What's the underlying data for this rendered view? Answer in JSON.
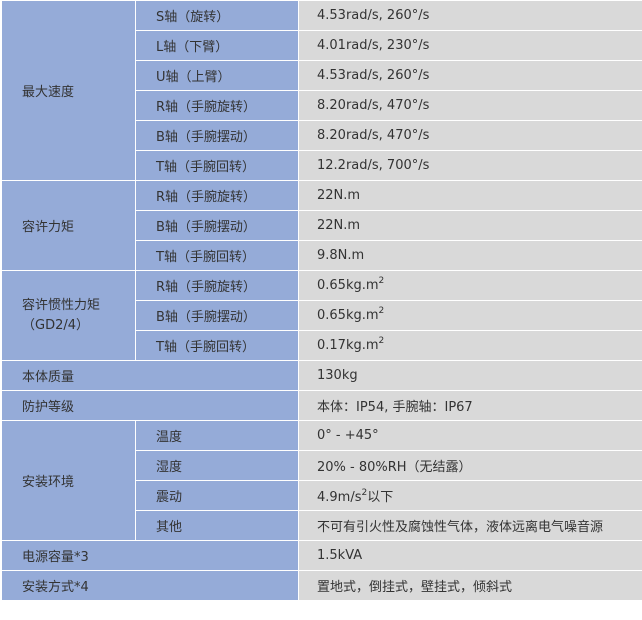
{
  "max_speed": {
    "label": "最大速度",
    "rows": [
      {
        "axis": "S轴（旋转）",
        "value": "4.53rad/s, 260°/s"
      },
      {
        "axis": "L轴（下臂）",
        "value": "4.01rad/s, 230°/s"
      },
      {
        "axis": "U轴（上臂）",
        "value": "4.53rad/s, 260°/s"
      },
      {
        "axis": "R轴（手腕旋转）",
        "value": "8.20rad/s, 470°/s"
      },
      {
        "axis": "B轴（手腕摆动）",
        "value": "8.20rad/s, 470°/s"
      },
      {
        "axis": "T轴（手腕回转）",
        "value": "12.2rad/s, 700°/s"
      }
    ]
  },
  "allowable_torque": {
    "label": "容许力矩",
    "rows": [
      {
        "axis": "R轴（手腕旋转）",
        "value": "22N.m"
      },
      {
        "axis": "B轴（手腕摆动）",
        "value": "22N.m"
      },
      {
        "axis": "T轴（手腕回转）",
        "value": "9.8N.m"
      }
    ]
  },
  "allowable_inertia": {
    "label_line1": "容许惯性力矩",
    "label_line2": "（GD2/4）",
    "rows": [
      {
        "axis": "R轴（手腕旋转）",
        "value": "0.65kg.m",
        "sup": "2"
      },
      {
        "axis": "B轴（手腕摆动）",
        "value": "0.65kg.m",
        "sup": "2"
      },
      {
        "axis": "T轴（手腕回转）",
        "value": "0.17kg.m",
        "sup": "2"
      }
    ]
  },
  "mass": {
    "label": "本体质量",
    "value": "130kg"
  },
  "protection": {
    "label": "防护等级",
    "value": "本体：IP54, 手腕轴：IP67"
  },
  "environment": {
    "label": "安装环境",
    "rows": [
      {
        "item": "温度",
        "value": "0° - +45°"
      },
      {
        "item": "湿度",
        "value": "20% - 80%RH（无结露）"
      },
      {
        "item": "震动",
        "value": "4.9m/s",
        "sup": "2",
        "suffix": "以下"
      },
      {
        "item": "其他",
        "value": "不可有引火性及腐蚀性气体，液体远离电气噪音源"
      }
    ]
  },
  "power": {
    "label": "电源容量*3",
    "value": "1.5kVA"
  },
  "mounting": {
    "label": "安装方式*4",
    "value": "置地式，倒挂式，壁挂式，倾斜式"
  },
  "colors": {
    "label_bg": "#95abd8",
    "value_bg": "#d9d9d9",
    "border": "#ffffff",
    "text": "#333333"
  }
}
